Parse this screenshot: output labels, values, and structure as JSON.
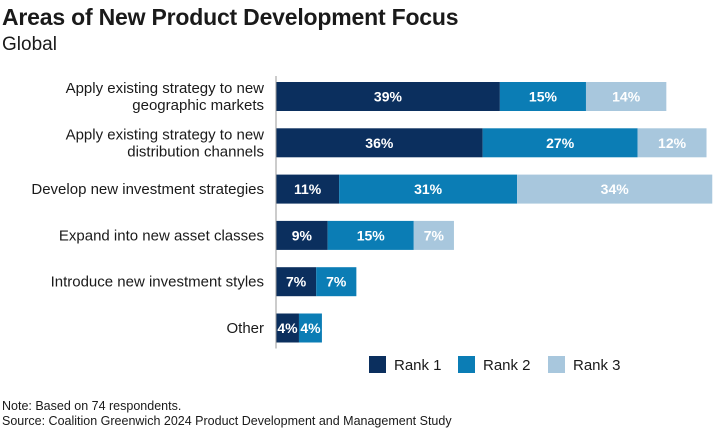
{
  "chart_data": {
    "type": "bar",
    "orientation": "horizontal",
    "stacked": true,
    "title": "Areas of New Product Development Focus",
    "subtitle": "Global",
    "categories": [
      [
        "Apply existing strategy to new",
        "geographic markets"
      ],
      [
        "Apply existing strategy to new",
        "distribution channels"
      ],
      [
        "Develop new investment strategies"
      ],
      [
        "Expand into new asset classes"
      ],
      [
        "Introduce new investment styles"
      ],
      [
        "Other"
      ]
    ],
    "series": [
      {
        "name": "Rank 1",
        "color": "#0b2f5e",
        "values": [
          39,
          36,
          11,
          9,
          7,
          4
        ]
      },
      {
        "name": "Rank 2",
        "color": "#0b7db5",
        "values": [
          15,
          27,
          31,
          15,
          7,
          4
        ]
      },
      {
        "name": "Rank 3",
        "color": "#a8c7dd",
        "values": [
          14,
          12,
          34,
          7,
          0,
          0
        ]
      }
    ],
    "value_suffix": "%",
    "xlim": [
      0,
      77
    ],
    "legend_position": "bottom-right"
  },
  "notes": {
    "line1": "Note: Based on 74 respondents.",
    "line2": "Source: Coalition Greenwich 2024 Product Development and Management Study"
  }
}
